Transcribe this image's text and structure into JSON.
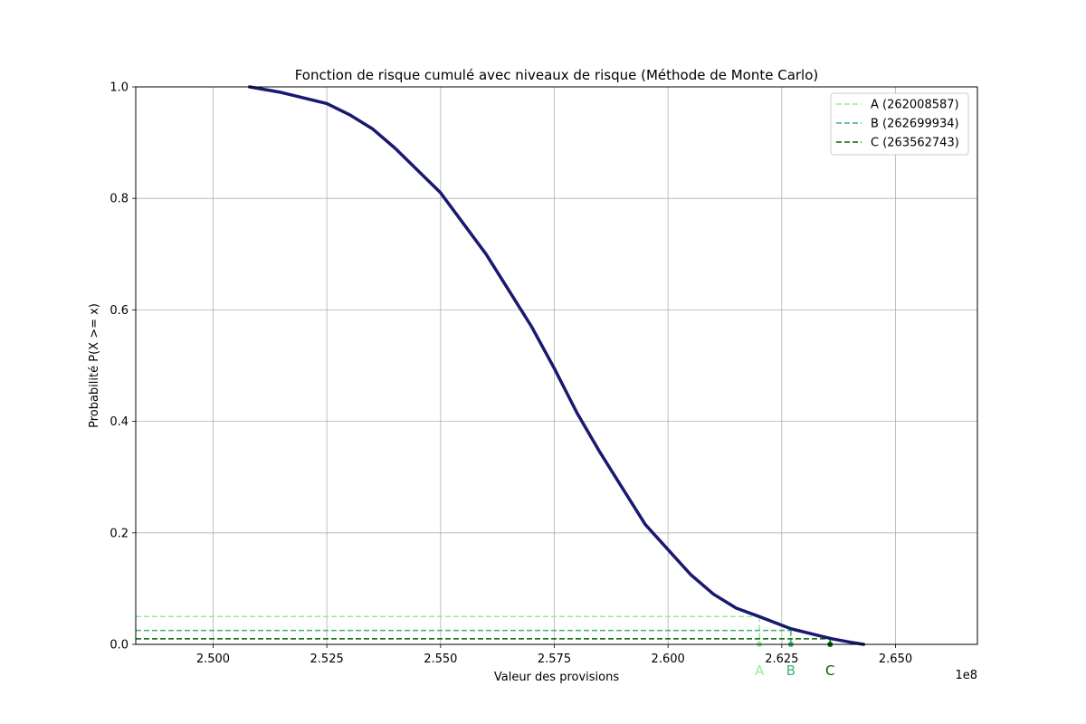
{
  "chart_data": {
    "type": "line",
    "title": "Fonction de risque cumulé avec niveaux de risque (Méthode de Monte Carlo)",
    "xlabel": "Valeur des provisions",
    "ylabel": "Probabilité P(X >= x)",
    "x_offset_text": "1e8",
    "xlim": [
      248300000,
      266800000
    ],
    "ylim": [
      0,
      1
    ],
    "xticks": [
      250000000,
      252500000,
      255000000,
      257500000,
      260000000,
      262500000,
      265000000
    ],
    "xtick_labels": [
      "2.500",
      "2.525",
      "2.550",
      "2.575",
      "2.600",
      "2.625",
      "2.650"
    ],
    "yticks": [
      0,
      0.2,
      0.4,
      0.6,
      0.8,
      1.0
    ],
    "ytick_labels": [
      "0.0",
      "0.2",
      "0.4",
      "0.6",
      "0.8",
      "1.0"
    ],
    "grid": true,
    "legend_position": "top-right",
    "series": [
      {
        "color": "#191970",
        "x": [
          250800000,
          251500000,
          252000000,
          252500000,
          253000000,
          253500000,
          254000000,
          254500000,
          255000000,
          255500000,
          256000000,
          256500000,
          257000000,
          257500000,
          258000000,
          258500000,
          259000000,
          259500000,
          260000000,
          260500000,
          261000000,
          261500000,
          262000000,
          262700000,
          263200000,
          263600000,
          264000000,
          264300000
        ],
        "y": [
          1.0,
          0.99,
          0.98,
          0.97,
          0.95,
          0.925,
          0.89,
          0.85,
          0.81,
          0.755,
          0.7,
          0.635,
          0.57,
          0.495,
          0.415,
          0.345,
          0.28,
          0.215,
          0.17,
          0.125,
          0.09,
          0.065,
          0.05,
          0.028,
          0.018,
          0.01,
          0.004,
          0.0
        ]
      }
    ],
    "risk_levels": [
      {
        "label": "A",
        "legend": "A (262008587)",
        "x": 262008587,
        "y": 0.05,
        "color": "#90ee90"
      },
      {
        "label": "B",
        "legend": "B (262699934)",
        "x": 262699934,
        "y": 0.025,
        "color": "#3cb371"
      },
      {
        "label": "C",
        "legend": "C (263562743)",
        "x": 263562743,
        "y": 0.01,
        "color": "#006400"
      }
    ]
  }
}
